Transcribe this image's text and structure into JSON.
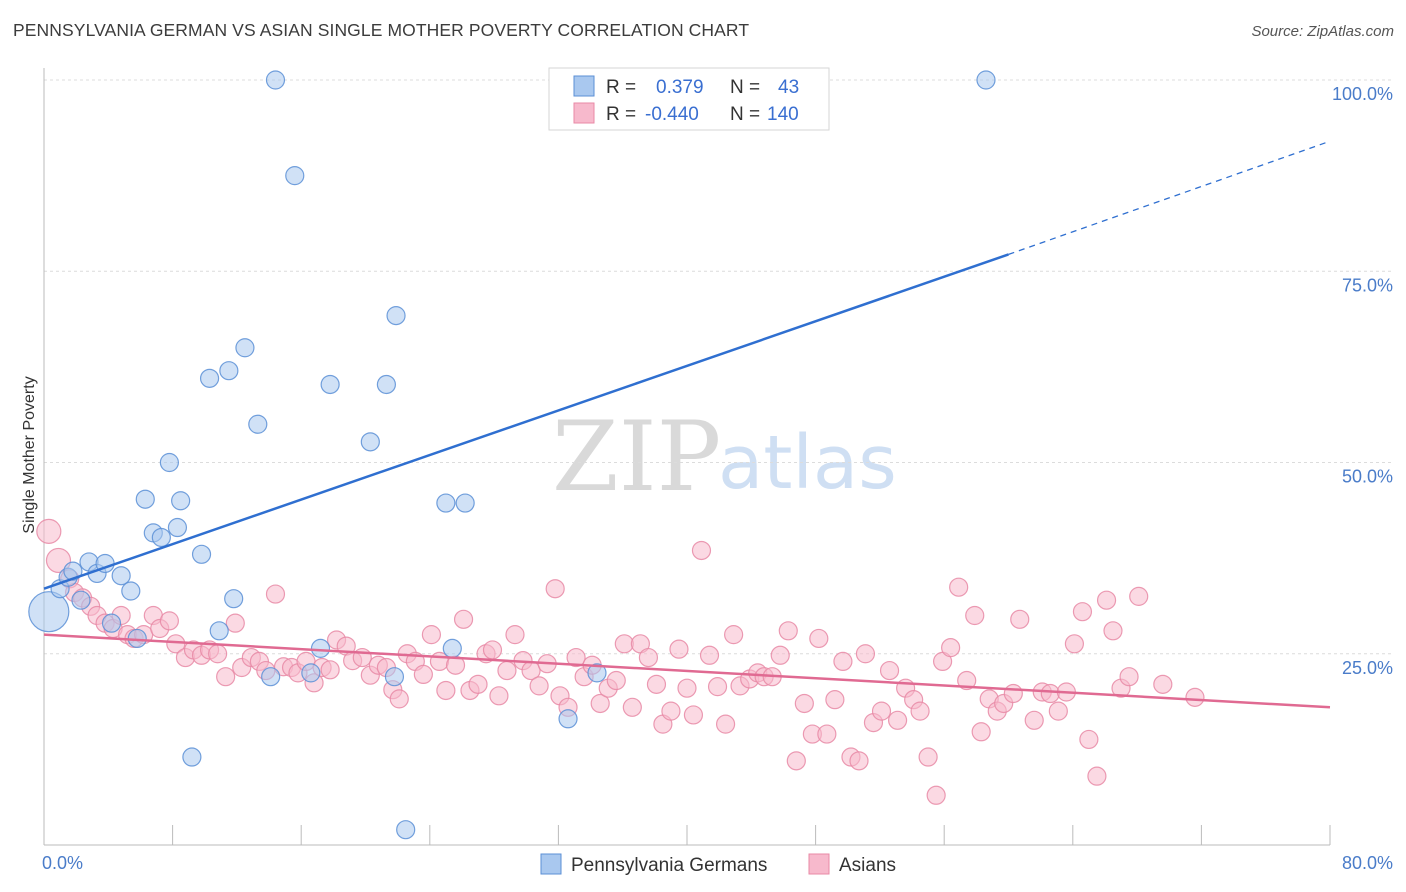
{
  "title": "PENNSYLVANIA GERMAN VS ASIAN SINGLE MOTHER POVERTY CORRELATION CHART",
  "source": "Source: ZipAtlas.com",
  "watermark": {
    "zip": "ZIP",
    "atlas": "atlas"
  },
  "legend_top": [
    {
      "r_label": "R =",
      "r_value": "0.379",
      "n_label": "N =",
      "n_value": "43",
      "color": "#a9c8ef",
      "stroke": "#5b8fd6"
    },
    {
      "r_label": "R =",
      "r_value": "-0.440",
      "n_label": "N =",
      "n_value": "140",
      "color": "#f7b9cc",
      "stroke": "#e889a6"
    }
  ],
  "chart_data": {
    "type": "scatter",
    "xlabel": "",
    "ylabel": "Single Mother Poverty",
    "xlim": [
      0,
      80
    ],
    "ylim": [
      0,
      100
    ],
    "x_tick_labels": [
      "0.0%",
      "80.0%"
    ],
    "y_tick_labels": [
      "25.0%",
      "50.0%",
      "75.0%",
      "100.0%"
    ],
    "y_ticks": [
      25,
      50,
      75,
      100
    ],
    "x_minor_ticks": [
      8,
      16,
      24,
      32,
      40,
      48,
      56,
      64,
      72,
      80
    ],
    "grid": true,
    "legend_position": "bottom-center",
    "series": [
      {
        "name": "Pennsylvania Germans",
        "color": "#a9c8ef",
        "stroke": "#5b8fd6",
        "line_color": "#2f6fd0",
        "trend": {
          "x0": 0,
          "y0": 33.5,
          "x1": 60,
          "y1": 77.2,
          "x_dash_end": 80,
          "y_dash_end": 92
        },
        "points": [
          {
            "x": 0.3,
            "y": 30.5,
            "s": 3
          },
          {
            "x": 1.0,
            "y": 33.5,
            "s": 1
          },
          {
            "x": 1.5,
            "y": 35,
            "s": 1
          },
          {
            "x": 1.8,
            "y": 35.8,
            "s": 1
          },
          {
            "x": 2.3,
            "y": 32,
            "s": 1
          },
          {
            "x": 2.8,
            "y": 37,
            "s": 1
          },
          {
            "x": 3.3,
            "y": 35.5,
            "s": 1
          },
          {
            "x": 3.8,
            "y": 36.8,
            "s": 1
          },
          {
            "x": 4.2,
            "y": 29,
            "s": 1
          },
          {
            "x": 4.8,
            "y": 35.2,
            "s": 1
          },
          {
            "x": 5.4,
            "y": 33.2,
            "s": 1
          },
          {
            "x": 5.8,
            "y": 27,
            "s": 1
          },
          {
            "x": 6.3,
            "y": 45.2,
            "s": 1
          },
          {
            "x": 6.8,
            "y": 40.8,
            "s": 1
          },
          {
            "x": 7.3,
            "y": 40.2,
            "s": 1
          },
          {
            "x": 7.8,
            "y": 50,
            "s": 1
          },
          {
            "x": 8.3,
            "y": 41.5,
            "s": 1
          },
          {
            "x": 8.5,
            "y": 45,
            "s": 1
          },
          {
            "x": 9.2,
            "y": 11.5,
            "s": 1
          },
          {
            "x": 9.8,
            "y": 38,
            "s": 1
          },
          {
            "x": 10.3,
            "y": 61,
            "s": 1
          },
          {
            "x": 10.9,
            "y": 28,
            "s": 1
          },
          {
            "x": 11.5,
            "y": 62,
            "s": 1
          },
          {
            "x": 11.8,
            "y": 32.2,
            "s": 1
          },
          {
            "x": 12.5,
            "y": 65,
            "s": 1
          },
          {
            "x": 13.3,
            "y": 55,
            "s": 1
          },
          {
            "x": 14.1,
            "y": 22,
            "s": 1
          },
          {
            "x": 14.4,
            "y": 100,
            "s": 1
          },
          {
            "x": 15.6,
            "y": 87.5,
            "s": 1
          },
          {
            "x": 16.6,
            "y": 22.5,
            "s": 1
          },
          {
            "x": 17.2,
            "y": 25.7,
            "s": 1
          },
          {
            "x": 17.8,
            "y": 60.2,
            "s": 1
          },
          {
            "x": 20.3,
            "y": 52.7,
            "s": 1
          },
          {
            "x": 21.3,
            "y": 60.2,
            "s": 1
          },
          {
            "x": 21.8,
            "y": 22,
            "s": 1
          },
          {
            "x": 21.9,
            "y": 69.2,
            "s": 1
          },
          {
            "x": 22.5,
            "y": 2,
            "s": 1
          },
          {
            "x": 25.0,
            "y": 44.7,
            "s": 1
          },
          {
            "x": 25.4,
            "y": 25.7,
            "s": 1
          },
          {
            "x": 26.2,
            "y": 44.7,
            "s": 1
          },
          {
            "x": 32.6,
            "y": 16.5,
            "s": 1
          },
          {
            "x": 34.4,
            "y": 22.5,
            "s": 1
          },
          {
            "x": 37.8,
            "y": 100,
            "s": 1
          },
          {
            "x": 58.6,
            "y": 100,
            "s": 1
          }
        ]
      },
      {
        "name": "Asians",
        "color": "#f7b9cc",
        "stroke": "#e889a6",
        "line_color": "#e06a92",
        "trend": {
          "x0": 0,
          "y0": 27.5,
          "x1": 80,
          "y1": 18
        },
        "points": [
          {
            "x": 0.3,
            "y": 41,
            "s": 2
          },
          {
            "x": 0.9,
            "y": 37.2,
            "s": 2
          },
          {
            "x": 1.6,
            "y": 34.8,
            "s": 1
          },
          {
            "x": 1.9,
            "y": 33,
            "s": 1
          },
          {
            "x": 2.4,
            "y": 32.3,
            "s": 1
          },
          {
            "x": 2.9,
            "y": 31.2,
            "s": 1
          },
          {
            "x": 3.3,
            "y": 30,
            "s": 1
          },
          {
            "x": 3.8,
            "y": 29,
            "s": 1
          },
          {
            "x": 4.3,
            "y": 28.3,
            "s": 1
          },
          {
            "x": 4.8,
            "y": 30,
            "s": 1
          },
          {
            "x": 5.2,
            "y": 27.5,
            "s": 1
          },
          {
            "x": 5.6,
            "y": 27,
            "s": 1
          },
          {
            "x": 6.2,
            "y": 27.5,
            "s": 1
          },
          {
            "x": 6.8,
            "y": 30,
            "s": 1
          },
          {
            "x": 7.2,
            "y": 28.3,
            "s": 1
          },
          {
            "x": 7.8,
            "y": 29.3,
            "s": 1
          },
          {
            "x": 8.2,
            "y": 26.3,
            "s": 1
          },
          {
            "x": 8.8,
            "y": 24.5,
            "s": 1
          },
          {
            "x": 9.3,
            "y": 25.5,
            "s": 1
          },
          {
            "x": 9.8,
            "y": 24.8,
            "s": 1
          },
          {
            "x": 10.3,
            "y": 25.5,
            "s": 1
          },
          {
            "x": 10.8,
            "y": 25,
            "s": 1
          },
          {
            "x": 11.3,
            "y": 22,
            "s": 1
          },
          {
            "x": 11.9,
            "y": 29,
            "s": 1
          },
          {
            "x": 12.3,
            "y": 23.2,
            "s": 1
          },
          {
            "x": 12.9,
            "y": 24.5,
            "s": 1
          },
          {
            "x": 13.4,
            "y": 24,
            "s": 1
          },
          {
            "x": 13.8,
            "y": 22.8,
            "s": 1
          },
          {
            "x": 14.4,
            "y": 32.8,
            "s": 1
          },
          {
            "x": 14.9,
            "y": 23.3,
            "s": 1
          },
          {
            "x": 15.4,
            "y": 23.2,
            "s": 1
          },
          {
            "x": 15.8,
            "y": 22.5,
            "s": 1
          },
          {
            "x": 16.3,
            "y": 24,
            "s": 1
          },
          {
            "x": 16.8,
            "y": 21.2,
            "s": 1
          },
          {
            "x": 17.3,
            "y": 23.2,
            "s": 1
          },
          {
            "x": 17.8,
            "y": 22.9,
            "s": 1
          },
          {
            "x": 18.2,
            "y": 26.8,
            "s": 1
          },
          {
            "x": 18.8,
            "y": 26,
            "s": 1
          },
          {
            "x": 19.2,
            "y": 24.1,
            "s": 1
          },
          {
            "x": 19.8,
            "y": 24.5,
            "s": 1
          },
          {
            "x": 20.3,
            "y": 22.2,
            "s": 1
          },
          {
            "x": 20.8,
            "y": 23.5,
            "s": 1
          },
          {
            "x": 21.3,
            "y": 23.2,
            "s": 1
          },
          {
            "x": 21.7,
            "y": 20.3,
            "s": 1
          },
          {
            "x": 22.1,
            "y": 19.1,
            "s": 1
          },
          {
            "x": 22.6,
            "y": 25,
            "s": 1
          },
          {
            "x": 23.1,
            "y": 24,
            "s": 1
          },
          {
            "x": 23.6,
            "y": 22.3,
            "s": 1
          },
          {
            "x": 24.1,
            "y": 27.5,
            "s": 1
          },
          {
            "x": 24.6,
            "y": 24,
            "s": 1
          },
          {
            "x": 25.0,
            "y": 20.2,
            "s": 1
          },
          {
            "x": 25.6,
            "y": 23.5,
            "s": 1
          },
          {
            "x": 26.1,
            "y": 29.5,
            "s": 1
          },
          {
            "x": 26.5,
            "y": 20.2,
            "s": 1
          },
          {
            "x": 27.0,
            "y": 21,
            "s": 1
          },
          {
            "x": 27.5,
            "y": 25,
            "s": 1
          },
          {
            "x": 27.9,
            "y": 25.5,
            "s": 1
          },
          {
            "x": 28.3,
            "y": 19.5,
            "s": 1
          },
          {
            "x": 28.8,
            "y": 22.8,
            "s": 1
          },
          {
            "x": 29.3,
            "y": 27.5,
            "s": 1
          },
          {
            "x": 29.8,
            "y": 24.1,
            "s": 1
          },
          {
            "x": 30.3,
            "y": 22.8,
            "s": 1
          },
          {
            "x": 30.8,
            "y": 20.8,
            "s": 1
          },
          {
            "x": 31.3,
            "y": 23.7,
            "s": 1
          },
          {
            "x": 31.8,
            "y": 33.5,
            "s": 1
          },
          {
            "x": 32.1,
            "y": 19.5,
            "s": 1
          },
          {
            "x": 32.6,
            "y": 18,
            "s": 1
          },
          {
            "x": 33.1,
            "y": 24.5,
            "s": 1
          },
          {
            "x": 33.6,
            "y": 22,
            "s": 1
          },
          {
            "x": 34.1,
            "y": 23.5,
            "s": 1
          },
          {
            "x": 34.6,
            "y": 18.5,
            "s": 1
          },
          {
            "x": 35.1,
            "y": 20.5,
            "s": 1
          },
          {
            "x": 35.6,
            "y": 21.5,
            "s": 1
          },
          {
            "x": 36.1,
            "y": 26.3,
            "s": 1
          },
          {
            "x": 36.6,
            "y": 18,
            "s": 1
          },
          {
            "x": 37.1,
            "y": 26.3,
            "s": 1
          },
          {
            "x": 37.6,
            "y": 24.5,
            "s": 1
          },
          {
            "x": 38.1,
            "y": 21,
            "s": 1
          },
          {
            "x": 38.5,
            "y": 15.8,
            "s": 1
          },
          {
            "x": 39.0,
            "y": 17.5,
            "s": 1
          },
          {
            "x": 39.5,
            "y": 25.6,
            "s": 1
          },
          {
            "x": 40.0,
            "y": 20.5,
            "s": 1
          },
          {
            "x": 40.4,
            "y": 17,
            "s": 1
          },
          {
            "x": 40.9,
            "y": 38.5,
            "s": 1
          },
          {
            "x": 41.4,
            "y": 24.8,
            "s": 1
          },
          {
            "x": 41.9,
            "y": 20.7,
            "s": 1
          },
          {
            "x": 42.4,
            "y": 15.8,
            "s": 1
          },
          {
            "x": 42.9,
            "y": 27.5,
            "s": 1
          },
          {
            "x": 43.3,
            "y": 20.8,
            "s": 1
          },
          {
            "x": 43.9,
            "y": 21.7,
            "s": 1
          },
          {
            "x": 44.4,
            "y": 22.5,
            "s": 1
          },
          {
            "x": 44.8,
            "y": 22,
            "s": 1
          },
          {
            "x": 45.3,
            "y": 22,
            "s": 1
          },
          {
            "x": 45.8,
            "y": 24.8,
            "s": 1
          },
          {
            "x": 46.3,
            "y": 28,
            "s": 1
          },
          {
            "x": 46.8,
            "y": 11,
            "s": 1
          },
          {
            "x": 47.3,
            "y": 18.5,
            "s": 1
          },
          {
            "x": 47.8,
            "y": 14.5,
            "s": 1
          },
          {
            "x": 48.2,
            "y": 27,
            "s": 1
          },
          {
            "x": 48.7,
            "y": 14.5,
            "s": 1
          },
          {
            "x": 49.2,
            "y": 19,
            "s": 1
          },
          {
            "x": 49.7,
            "y": 24,
            "s": 1
          },
          {
            "x": 50.2,
            "y": 11.5,
            "s": 1
          },
          {
            "x": 50.7,
            "y": 11,
            "s": 1
          },
          {
            "x": 51.1,
            "y": 25,
            "s": 1
          },
          {
            "x": 51.6,
            "y": 16,
            "s": 1
          },
          {
            "x": 52.1,
            "y": 17.5,
            "s": 1
          },
          {
            "x": 52.6,
            "y": 22.8,
            "s": 1
          },
          {
            "x": 53.1,
            "y": 16.3,
            "s": 1
          },
          {
            "x": 53.6,
            "y": 20.5,
            "s": 1
          },
          {
            "x": 54.1,
            "y": 19,
            "s": 1
          },
          {
            "x": 54.5,
            "y": 17.5,
            "s": 1
          },
          {
            "x": 55.0,
            "y": 11.5,
            "s": 1
          },
          {
            "x": 55.5,
            "y": 6.5,
            "s": 1
          },
          {
            "x": 55.9,
            "y": 24,
            "s": 1
          },
          {
            "x": 56.4,
            "y": 25.8,
            "s": 1
          },
          {
            "x": 56.9,
            "y": 33.7,
            "s": 1
          },
          {
            "x": 57.4,
            "y": 21.5,
            "s": 1
          },
          {
            "x": 57.9,
            "y": 30,
            "s": 1
          },
          {
            "x": 58.3,
            "y": 14.8,
            "s": 1
          },
          {
            "x": 58.8,
            "y": 19.1,
            "s": 1
          },
          {
            "x": 59.3,
            "y": 17.5,
            "s": 1
          },
          {
            "x": 59.7,
            "y": 18.5,
            "s": 1
          },
          {
            "x": 60.3,
            "y": 19.8,
            "s": 1
          },
          {
            "x": 60.7,
            "y": 29.5,
            "s": 1
          },
          {
            "x": 61.6,
            "y": 16.3,
            "s": 1
          },
          {
            "x": 62.1,
            "y": 20,
            "s": 1
          },
          {
            "x": 62.6,
            "y": 19.8,
            "s": 1
          },
          {
            "x": 63.1,
            "y": 17.5,
            "s": 1
          },
          {
            "x": 63.6,
            "y": 20,
            "s": 1
          },
          {
            "x": 64.1,
            "y": 26.3,
            "s": 1
          },
          {
            "x": 64.6,
            "y": 30.5,
            "s": 1
          },
          {
            "x": 65.0,
            "y": 13.8,
            "s": 1
          },
          {
            "x": 65.5,
            "y": 9,
            "s": 1
          },
          {
            "x": 66.1,
            "y": 32,
            "s": 1
          },
          {
            "x": 66.5,
            "y": 28,
            "s": 1
          },
          {
            "x": 67.0,
            "y": 20.5,
            "s": 1
          },
          {
            "x": 67.5,
            "y": 22,
            "s": 1
          },
          {
            "x": 68.1,
            "y": 32.5,
            "s": 1
          },
          {
            "x": 69.6,
            "y": 21,
            "s": 1
          },
          {
            "x": 71.6,
            "y": 19.3,
            "s": 1
          }
        ]
      }
    ]
  }
}
